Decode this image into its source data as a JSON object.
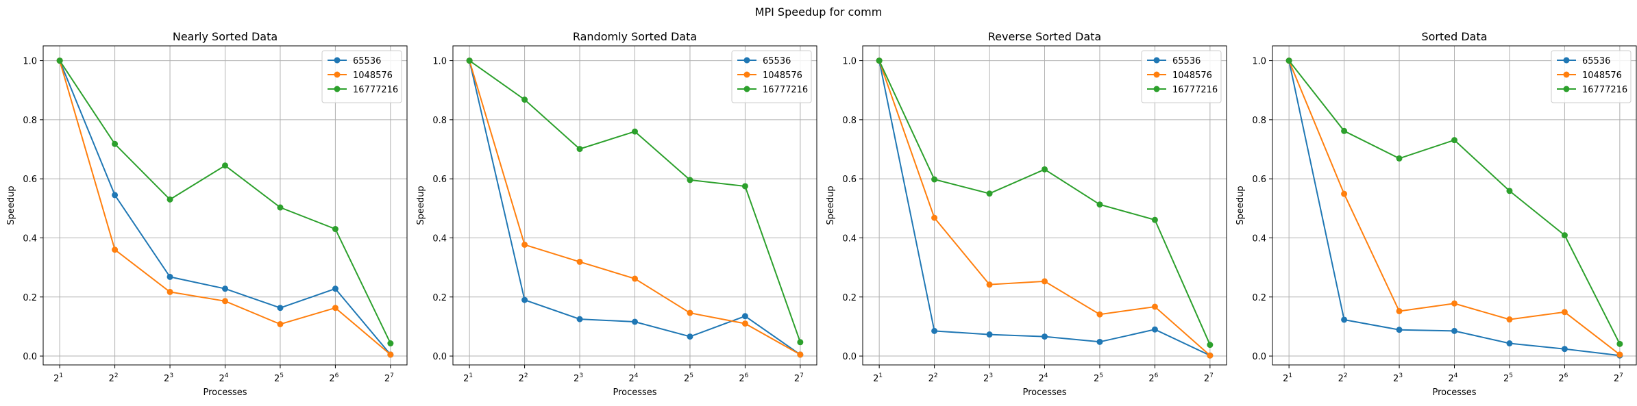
{
  "suptitle": "MPI Speedup for comm",
  "colors": {
    "s0": "#1f77b4",
    "s1": "#ff7f0e",
    "s2": "#2ca02c"
  },
  "chart_data": [
    {
      "type": "line",
      "title": "Nearly Sorted Data",
      "xlabel": "Processes",
      "ylabel": "Speedup",
      "x_scale": "log2",
      "x": [
        2,
        4,
        8,
        16,
        32,
        64,
        128
      ],
      "x_tick_labels": [
        {
          "base": "2",
          "exp": "1"
        },
        {
          "base": "2",
          "exp": "2"
        },
        {
          "base": "2",
          "exp": "3"
        },
        {
          "base": "2",
          "exp": "4"
        },
        {
          "base": "2",
          "exp": "5"
        },
        {
          "base": "2",
          "exp": "6"
        },
        {
          "base": "2",
          "exp": "7"
        }
      ],
      "y_ticks": [
        "0.0",
        "0.2",
        "0.4",
        "0.6",
        "0.8",
        "1.0"
      ],
      "ylim": [
        -0.03,
        1.05
      ],
      "grid": true,
      "legend": "top-right",
      "series": [
        {
          "name": "65536",
          "values": [
            1.0,
            0.545,
            0.268,
            0.228,
            0.163,
            0.228,
            0.005
          ]
        },
        {
          "name": "1048576",
          "values": [
            1.0,
            0.36,
            0.217,
            0.186,
            0.108,
            0.163,
            0.005
          ]
        },
        {
          "name": "16777216",
          "values": [
            1.0,
            0.718,
            0.53,
            0.645,
            0.503,
            0.43,
            0.043
          ]
        }
      ]
    },
    {
      "type": "line",
      "title": "Randomly Sorted Data",
      "xlabel": "Processes",
      "ylabel": "Speedup",
      "x_scale": "log2",
      "x": [
        2,
        4,
        8,
        16,
        32,
        64,
        128
      ],
      "x_tick_labels": [
        {
          "base": "2",
          "exp": "1"
        },
        {
          "base": "2",
          "exp": "2"
        },
        {
          "base": "2",
          "exp": "3"
        },
        {
          "base": "2",
          "exp": "4"
        },
        {
          "base": "2",
          "exp": "5"
        },
        {
          "base": "2",
          "exp": "6"
        },
        {
          "base": "2",
          "exp": "7"
        }
      ],
      "y_ticks": [
        "0.0",
        "0.2",
        "0.4",
        "0.6",
        "0.8",
        "1.0"
      ],
      "ylim": [
        -0.03,
        1.05
      ],
      "grid": true,
      "legend": "top-right",
      "series": [
        {
          "name": "65536",
          "values": [
            1.0,
            0.19,
            0.125,
            0.116,
            0.066,
            0.135,
            0.005
          ]
        },
        {
          "name": "1048576",
          "values": [
            1.0,
            0.377,
            0.319,
            0.262,
            0.146,
            0.11,
            0.005
          ]
        },
        {
          "name": "16777216",
          "values": [
            1.0,
            0.868,
            0.701,
            0.76,
            0.596,
            0.575,
            0.047
          ]
        }
      ]
    },
    {
      "type": "line",
      "title": "Reverse Sorted Data",
      "xlabel": "Processes",
      "ylabel": "Speedup",
      "x_scale": "log2",
      "x": [
        2,
        4,
        8,
        16,
        32,
        64,
        128
      ],
      "x_tick_labels": [
        {
          "base": "2",
          "exp": "1"
        },
        {
          "base": "2",
          "exp": "2"
        },
        {
          "base": "2",
          "exp": "3"
        },
        {
          "base": "2",
          "exp": "4"
        },
        {
          "base": "2",
          "exp": "5"
        },
        {
          "base": "2",
          "exp": "6"
        },
        {
          "base": "2",
          "exp": "7"
        }
      ],
      "y_ticks": [
        "0.0",
        "0.2",
        "0.4",
        "0.6",
        "0.8",
        "1.0"
      ],
      "ylim": [
        -0.03,
        1.05
      ],
      "grid": true,
      "legend": "top-right",
      "series": [
        {
          "name": "65536",
          "values": [
            1.0,
            0.085,
            0.073,
            0.066,
            0.048,
            0.09,
            0.002
          ]
        },
        {
          "name": "1048576",
          "values": [
            1.0,
            0.468,
            0.242,
            0.253,
            0.141,
            0.167,
            0.002
          ]
        },
        {
          "name": "16777216",
          "values": [
            1.0,
            0.598,
            0.55,
            0.632,
            0.513,
            0.461,
            0.038
          ]
        }
      ]
    },
    {
      "type": "line",
      "title": "Sorted Data",
      "xlabel": "Processes",
      "ylabel": "Speedup",
      "x_scale": "log2",
      "x": [
        2,
        4,
        8,
        16,
        32,
        64,
        128
      ],
      "x_tick_labels": [
        {
          "base": "2",
          "exp": "1"
        },
        {
          "base": "2",
          "exp": "2"
        },
        {
          "base": "2",
          "exp": "3"
        },
        {
          "base": "2",
          "exp": "4"
        },
        {
          "base": "2",
          "exp": "5"
        },
        {
          "base": "2",
          "exp": "6"
        },
        {
          "base": "2",
          "exp": "7"
        }
      ],
      "y_ticks": [
        "0.0",
        "0.2",
        "0.4",
        "0.6",
        "0.8",
        "1.0"
      ],
      "ylim": [
        -0.03,
        1.05
      ],
      "grid": true,
      "legend": "top-right",
      "series": [
        {
          "name": "65536",
          "values": [
            1.0,
            0.123,
            0.089,
            0.085,
            0.043,
            0.024,
            0.002
          ]
        },
        {
          "name": "1048576",
          "values": [
            1.0,
            0.549,
            0.152,
            0.178,
            0.124,
            0.149,
            0.005
          ]
        },
        {
          "name": "16777216",
          "values": [
            1.0,
            0.762,
            0.669,
            0.731,
            0.559,
            0.409,
            0.041
          ]
        }
      ]
    }
  ]
}
